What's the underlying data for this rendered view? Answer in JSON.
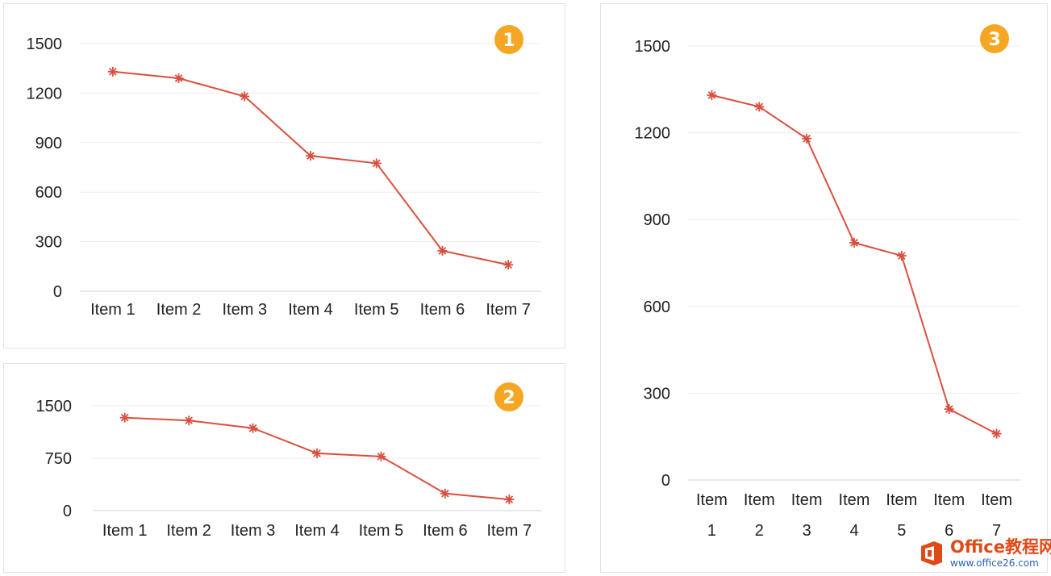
{
  "chart_data": [
    {
      "type": "line",
      "badge": "1",
      "categories": [
        "Item 1",
        "Item 2",
        "Item 3",
        "Item 4",
        "Item 5",
        "Item 6",
        "Item 7"
      ],
      "values": [
        1330,
        1290,
        1180,
        820,
        775,
        245,
        160
      ],
      "ylim": [
        0,
        1500
      ],
      "yticks": [
        0,
        300,
        600,
        900,
        1200,
        1500
      ],
      "ytick_labels": [
        "0",
        "300",
        "600",
        "900",
        "1200",
        "1500"
      ],
      "grid": true,
      "marker": "asterisk",
      "line_color": "#d9503f",
      "badge_color": "#f5a623",
      "title": "",
      "xlabel": "",
      "ylabel": ""
    },
    {
      "type": "line",
      "badge": "2",
      "categories": [
        "Item 1",
        "Item 2",
        "Item 3",
        "Item 4",
        "Item 5",
        "Item 6",
        "Item 7"
      ],
      "values": [
        1330,
        1290,
        1180,
        820,
        775,
        245,
        160
      ],
      "ylim": [
        0,
        1500
      ],
      "yticks": [
        0,
        750,
        1500
      ],
      "ytick_labels": [
        "0",
        "750",
        "1500"
      ],
      "grid": true,
      "marker": "asterisk",
      "line_color": "#d9503f",
      "badge_color": "#f5a623",
      "title": "",
      "xlabel": "",
      "ylabel": ""
    },
    {
      "type": "line",
      "badge": "3",
      "categories": [
        "Item 1",
        "Item 2",
        "Item 3",
        "Item 4",
        "Item 5",
        "Item 6",
        "Item 7"
      ],
      "values": [
        1330,
        1290,
        1180,
        820,
        775,
        245,
        160
      ],
      "ylim": [
        0,
        1500
      ],
      "yticks": [
        0,
        300,
        600,
        900,
        1200,
        1500
      ],
      "ytick_labels": [
        "0",
        "300",
        "600",
        "900",
        "1200",
        "1500"
      ],
      "grid": true,
      "marker": "asterisk",
      "line_color": "#d9503f",
      "badge_color": "#f5a623",
      "title": "",
      "xlabel": "",
      "ylabel": ""
    }
  ],
  "watermark": {
    "line1": "Office教程网",
    "line2": "www.office26.com",
    "logo_color": "#e04a16"
  }
}
